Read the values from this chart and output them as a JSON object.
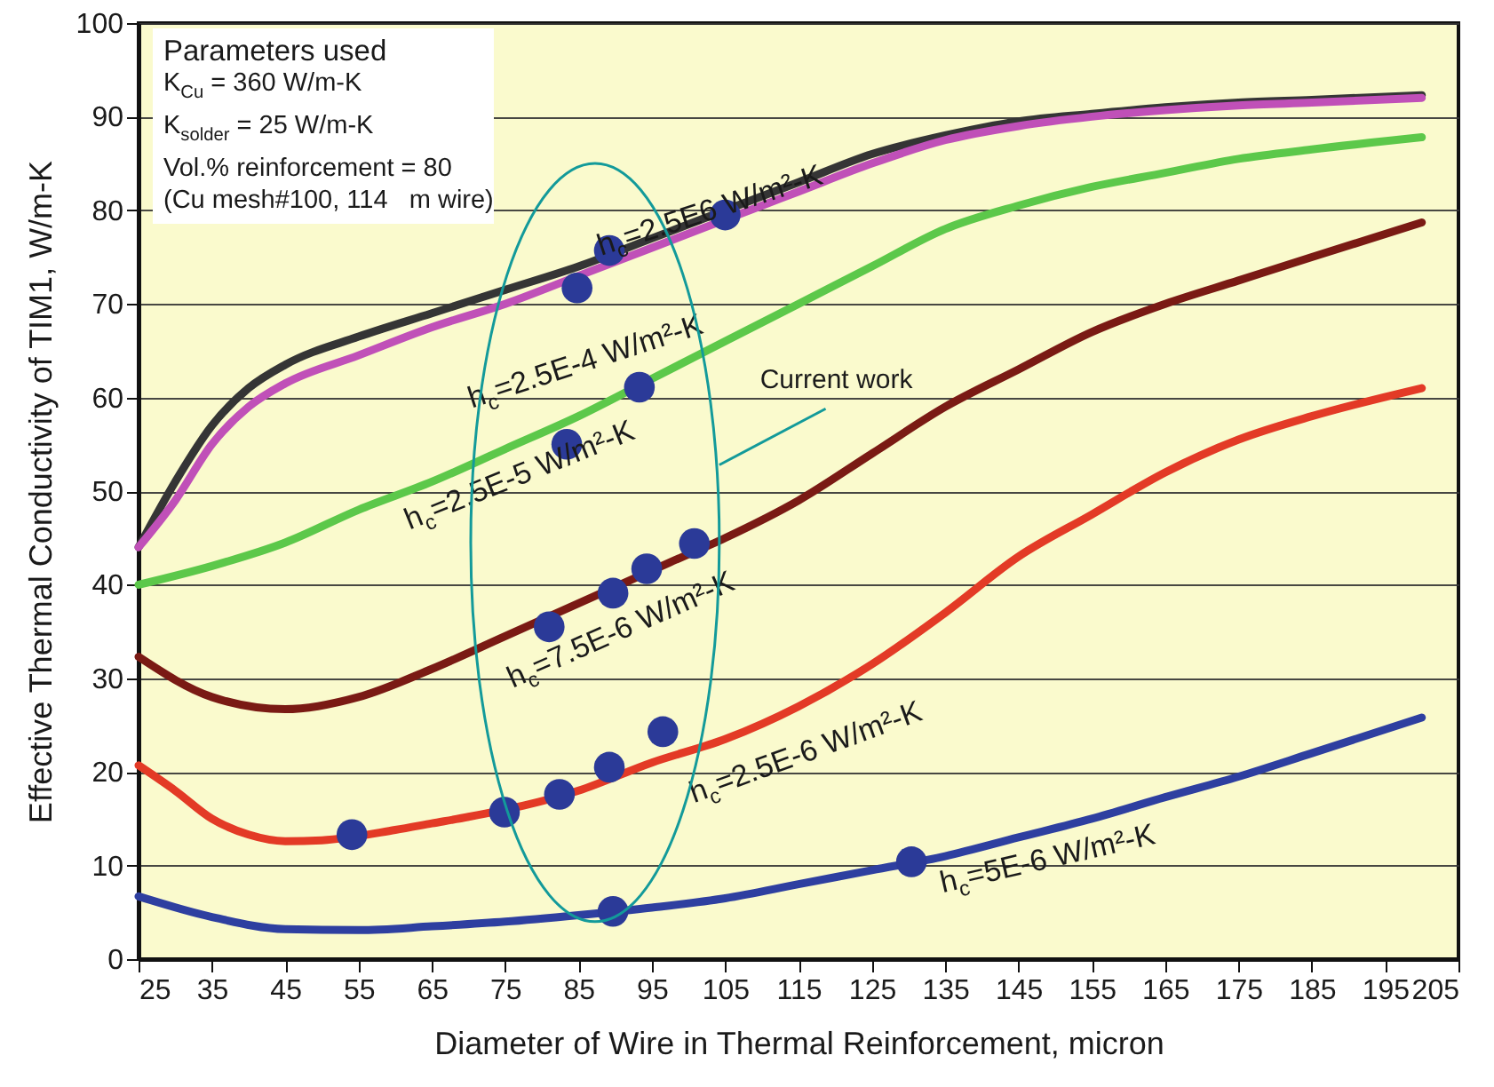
{
  "chart_data": {
    "type": "line",
    "xlabel": "Diameter of Wire in Thermal Reinforcement, micron",
    "ylabel": "Effective Thermal Conductivity of TIM1, W/m-K",
    "xlim": [
      25,
      205
    ],
    "xticks": [
      25,
      35,
      45,
      55,
      65,
      75,
      85,
      95,
      105,
      115,
      125,
      135,
      145,
      155,
      165,
      175,
      185,
      195,
      205
    ],
    "ylim": [
      0,
      100
    ],
    "yticks": [
      0,
      10,
      20,
      30,
      40,
      50,
      60,
      70,
      80,
      90,
      100
    ],
    "grid": "y",
    "line_style": "solid",
    "annotations": [
      "Parameters used",
      "K$_{Cu}$ = 360 W/m-K",
      "K$_{solder}$ = 25 W/m-K",
      "Vol.% reinforcement = 80",
      "(Cu mesh#100, 114   m wire)",
      "Current work"
    ],
    "series": [
      {
        "name": "h$_{c}$=2.5E6 W/m²-K",
        "color": "#353535",
        "x": [
          25,
          30,
          35,
          40,
          45,
          55,
          65,
          75,
          85,
          95,
          105,
          115,
          125,
          135,
          145,
          155,
          165,
          175,
          185,
          200
        ],
        "values": [
          44,
          51,
          57,
          61,
          63.5,
          66.5,
          69,
          71.5,
          74,
          77,
          80,
          83,
          86,
          88,
          89.5,
          90.3,
          91,
          91.5,
          91.8,
          92.3
        ]
      },
      {
        "name": "h$_{c}$=2.5E-4 W/m²-K",
        "color": "#c050b8",
        "x": [
          25,
          30,
          35,
          40,
          45,
          55,
          65,
          75,
          85,
          95,
          110,
          115,
          125,
          135,
          145,
          155,
          165,
          175,
          185,
          200
        ],
        "values": [
          44,
          49,
          55,
          59,
          61.5,
          64.5,
          67.5,
          70,
          73,
          76,
          80.5,
          82,
          85,
          87.5,
          89,
          90,
          90.7,
          91.2,
          91.5,
          92
        ]
      },
      {
        "name": "h$_{c}$=2.5E-5 W/m²-K",
        "color": "#5cc84a",
        "x": [
          25,
          35,
          45,
          55,
          65,
          75,
          85,
          95,
          105,
          115,
          125,
          135,
          145,
          155,
          165,
          175,
          185,
          200
        ],
        "values": [
          40,
          42,
          44.5,
          48,
          51,
          54.5,
          58,
          62,
          66,
          70,
          74,
          78,
          80.5,
          82.5,
          84,
          85.5,
          86.5,
          87.8
        ]
      },
      {
        "name": "h$_{c}$=7.5E-6 W/m²-K",
        "color": "#7a1a14",
        "x": [
          25,
          35,
          45,
          55,
          65,
          75,
          85,
          97.5,
          105,
          115,
          125,
          135,
          145,
          155,
          165,
          175,
          185,
          200
        ],
        "values": [
          32.3,
          28,
          26.7,
          28,
          31,
          34.5,
          38,
          42.4,
          45,
          49,
          54,
          59,
          63,
          67,
          70,
          72.5,
          75,
          78.7
        ]
      },
      {
        "name": "h$_{c}$=2.5E-6 W/m²-K",
        "color": "#e33a26",
        "x": [
          25,
          30,
          35,
          40,
          45,
          50,
          60,
          65,
          70,
          85,
          95,
          105,
          115,
          125,
          135,
          145,
          155,
          165,
          175,
          185,
          200
        ],
        "values": [
          20.7,
          18,
          15,
          13.3,
          12.6,
          12.7,
          13.8,
          14.5,
          15.2,
          18,
          21,
          23.5,
          27,
          31.5,
          37,
          43,
          47.5,
          52,
          55.5,
          58,
          61
        ]
      },
      {
        "name": "h$_{c}$=5E-6 W/m²-K",
        "color": "#2e3fa0",
        "x": [
          25,
          35,
          45,
          55,
          65,
          75,
          85,
          95,
          105,
          115,
          125,
          135,
          145,
          155,
          165,
          175,
          185,
          200
        ],
        "values": [
          6.7,
          4.5,
          3.2,
          3.1,
          3.5,
          4,
          4.7,
          5.5,
          6.5,
          8,
          9.5,
          11,
          13,
          15,
          17.3,
          19.5,
          22,
          25.8
        ]
      },
      {
        "type": "scatter",
        "marker": "circle",
        "color": "#2b3a98",
        "x": [
          89.2,
          105,
          84.8,
          93.3,
          83.4,
          100.8,
          94.3,
          89.7,
          81,
          96.5,
          89.2,
          82.4,
          74.9,
          54.1,
          89.7,
          130.4
        ],
        "values": [
          75.7,
          79.5,
          71.7,
          61.1,
          55,
          44.4,
          41.7,
          39.1,
          35.5,
          24.3,
          20.5,
          17.6,
          15.7,
          13.3,
          5.1,
          10.4
        ]
      }
    ]
  }
}
